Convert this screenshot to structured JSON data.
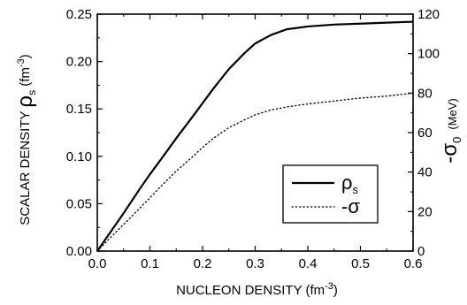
{
  "chart_data": {
    "type": "line",
    "x_axis": {
      "label_main": "NUCLEON DENSITY (fm",
      "label_sup": "-3",
      "label_close": ")",
      "range": [
        0.0,
        0.6
      ],
      "ticks": [
        "0.0",
        "0.1",
        "0.2",
        "0.3",
        "0.4",
        "0.5",
        "0.6"
      ],
      "tick_values": [
        0.0,
        0.1,
        0.2,
        0.3,
        0.4,
        0.5,
        0.6
      ]
    },
    "y_left": {
      "label_main": "SCALAR DENSITY ",
      "label_rho": "ρ",
      "label_sub": "s",
      "label_unit": " (fm",
      "label_sup": "-3",
      "label_close": ")",
      "range": [
        0.0,
        0.25
      ],
      "ticks": [
        "0.00",
        "0.05",
        "0.10",
        "0.15",
        "0.20",
        "0.25"
      ],
      "tick_values": [
        0.0,
        0.05,
        0.1,
        0.15,
        0.2,
        0.25
      ]
    },
    "y_right": {
      "label_main": "-σ",
      "label_sub": "0",
      "label_unit": "(MeV)",
      "range": [
        0,
        120
      ],
      "ticks": [
        "0",
        "20",
        "40",
        "60",
        "80",
        "100",
        "120"
      ],
      "tick_values": [
        0,
        20,
        40,
        60,
        80,
        100,
        120
      ]
    },
    "series": [
      {
        "name": "ρs",
        "legend_main": "ρ",
        "legend_sub": "s",
        "axis": "left",
        "style": "solid",
        "color": "#000000",
        "x": [
          0.0,
          0.02,
          0.05,
          0.08,
          0.1,
          0.12,
          0.15,
          0.18,
          0.2,
          0.22,
          0.25,
          0.28,
          0.3,
          0.33,
          0.36,
          0.4,
          0.45,
          0.5,
          0.55,
          0.6
        ],
        "y": [
          0.0,
          0.016,
          0.04,
          0.065,
          0.081,
          0.096,
          0.119,
          0.141,
          0.156,
          0.171,
          0.192,
          0.209,
          0.219,
          0.228,
          0.234,
          0.237,
          0.239,
          0.24,
          0.241,
          0.242
        ]
      },
      {
        "name": "-σ",
        "legend_main": "-σ",
        "axis": "right",
        "style": "dotted",
        "color": "#000000",
        "x": [
          0.0,
          0.02,
          0.05,
          0.08,
          0.1,
          0.12,
          0.15,
          0.18,
          0.2,
          0.22,
          0.25,
          0.28,
          0.3,
          0.33,
          0.36,
          0.4,
          0.45,
          0.5,
          0.55,
          0.6
        ],
        "y": [
          0.0,
          5.5,
          13.5,
          21.5,
          27.0,
          32.5,
          40.5,
          47.5,
          52.5,
          57.0,
          62.5,
          66.5,
          69.0,
          71.5,
          73.0,
          74.5,
          76.0,
          77.5,
          78.5,
          80.0
        ]
      }
    ],
    "legend_position": "center-right",
    "grid": false
  }
}
